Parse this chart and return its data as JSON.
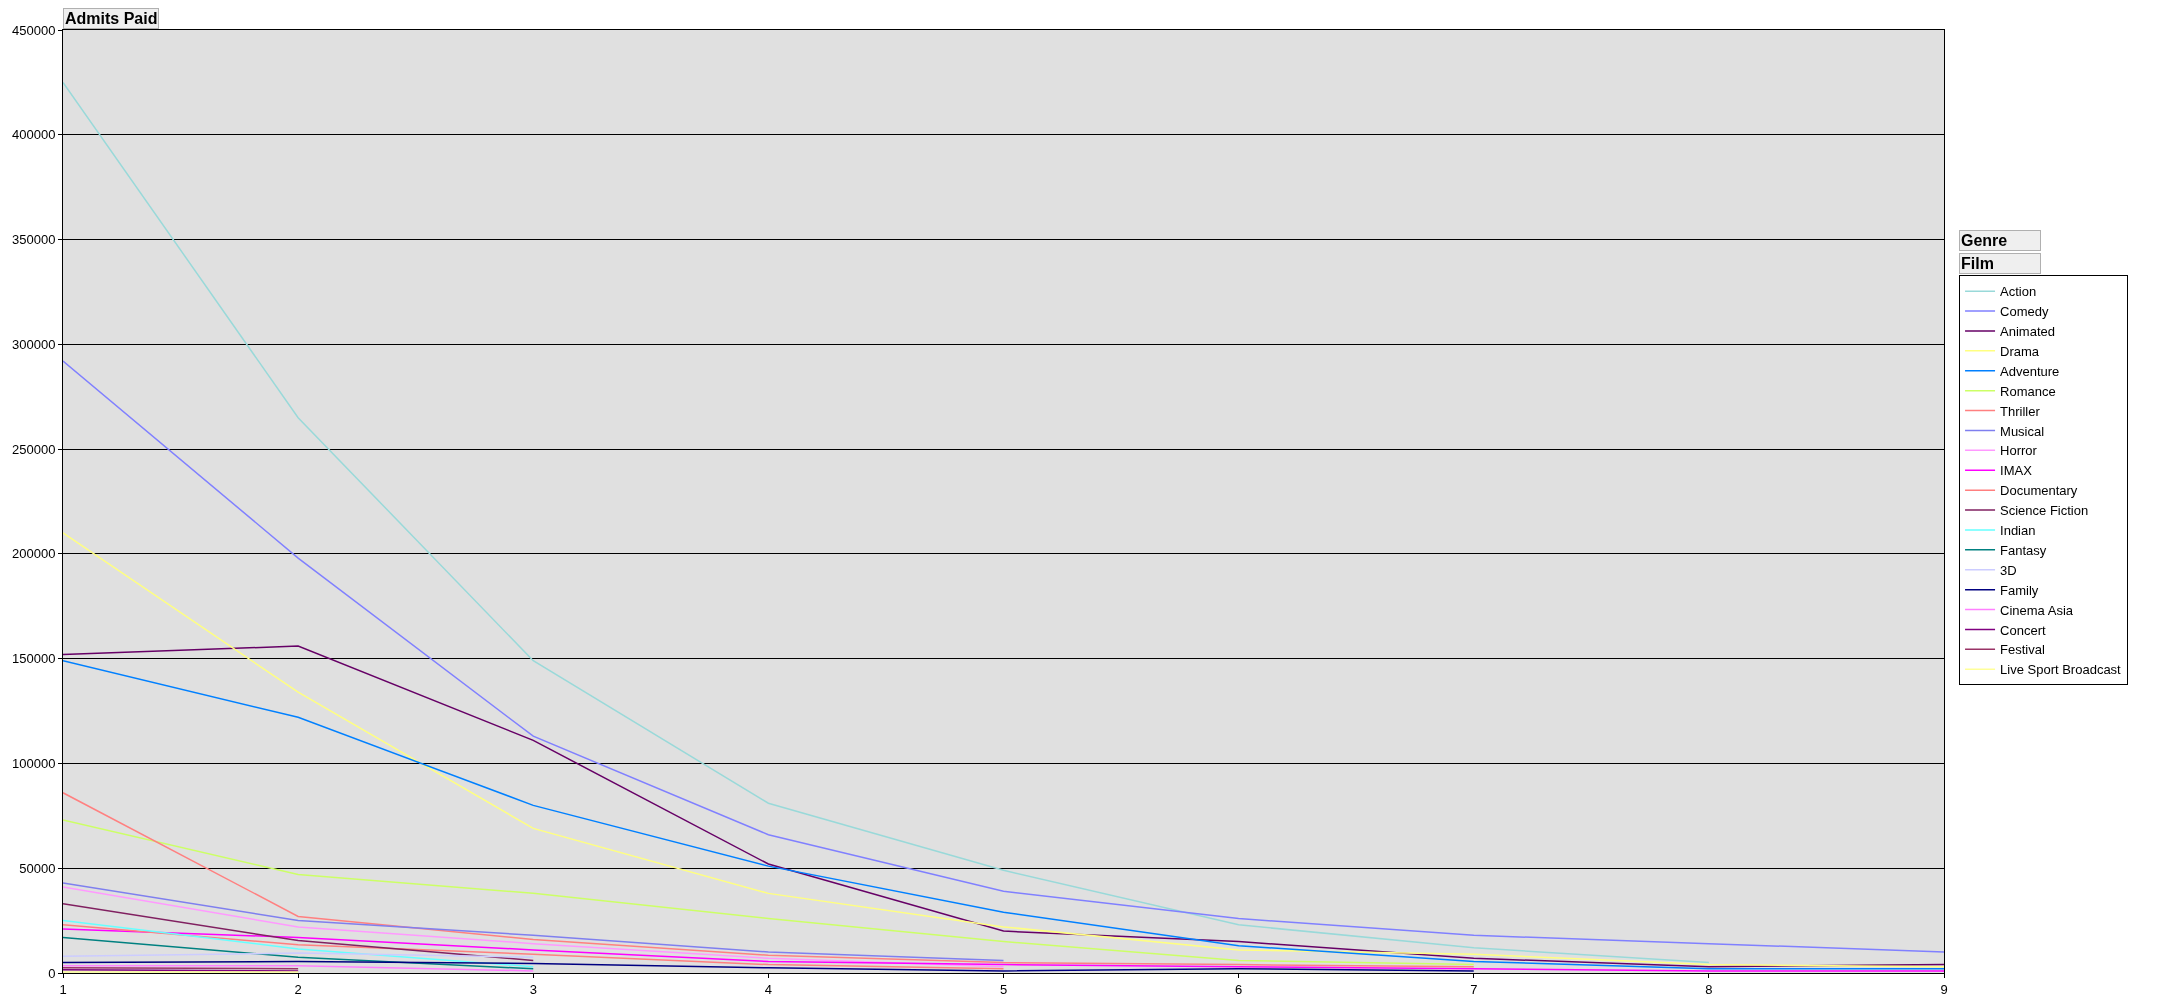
{
  "chart_data": {
    "type": "line",
    "ylabel": "Admits Paid",
    "legend_title": "Genre",
    "annotations": [
      "Film"
    ],
    "x": [
      1,
      2,
      3,
      4,
      5,
      6,
      7,
      8,
      9
    ],
    "xlim": [
      1,
      9
    ],
    "xticks": [
      1,
      2,
      3,
      4,
      5,
      6,
      7,
      8,
      9
    ],
    "ylim": [
      0,
      450000
    ],
    "yticks": [
      0,
      50000,
      100000,
      150000,
      200000,
      250000,
      300000,
      350000,
      400000,
      450000
    ],
    "grid": "y",
    "legend": "right",
    "marker": "none",
    "line_style": "solid",
    "series": [
      {
        "name": "Action",
        "color": "#99d9d9",
        "values": [
          425000,
          265000,
          149000,
          81000,
          49000,
          23000,
          12000,
          5000,
          null
        ]
      },
      {
        "name": "Comedy",
        "color": "#8080ff",
        "values": [
          292000,
          198000,
          113000,
          66000,
          39000,
          26000,
          18000,
          14000,
          10000
        ]
      },
      {
        "name": "Animated",
        "color": "#660066",
        "values": [
          152000,
          156000,
          111000,
          52000,
          20000,
          15000,
          7000,
          3000,
          4000
        ]
      },
      {
        "name": "Drama",
        "color": "#ffff80",
        "values": [
          210000,
          134000,
          69000,
          38000,
          22000,
          11000,
          9000,
          4000,
          3000
        ]
      },
      {
        "name": "Adventure",
        "color": "#0080ff",
        "values": [
          149000,
          122000,
          80000,
          51000,
          29000,
          13000,
          5500,
          2000,
          2000
        ]
      },
      {
        "name": "Romance",
        "color": "#ccff66",
        "values": [
          73000,
          47000,
          38000,
          26000,
          15000,
          6000,
          4000,
          null,
          null
        ]
      },
      {
        "name": "Thriller",
        "color": "#ff8080",
        "values": [
          86000,
          27000,
          16000,
          8500,
          5000,
          4000,
          3000,
          null,
          null
        ]
      },
      {
        "name": "Musical",
        "color": "#7f7fef",
        "values": [
          43000,
          25000,
          18000,
          10000,
          6000,
          null,
          null,
          null,
          null
        ]
      },
      {
        "name": "Horror",
        "color": "#ff99ff",
        "values": [
          41000,
          22000,
          14000,
          7000,
          3000,
          null,
          null,
          null,
          null
        ]
      },
      {
        "name": "IMAX",
        "color": "#ff00ff",
        "values": [
          21000,
          17000,
          11000,
          5500,
          4000,
          3000,
          2000,
          1000,
          1000
        ]
      },
      {
        "name": "Documentary",
        "color": "#ff7f7f",
        "values": [
          23000,
          13500,
          9000,
          4000,
          2000,
          null,
          null,
          null,
          null
        ]
      },
      {
        "name": "Science Fiction",
        "color": "#802060",
        "values": [
          33000,
          15500,
          6000,
          null,
          null,
          null,
          null,
          null,
          null
        ]
      },
      {
        "name": "Indian",
        "color": "#66ffff",
        "values": [
          25000,
          11500,
          3000,
          null,
          null,
          null,
          null,
          null,
          null
        ]
      },
      {
        "name": "Fantasy",
        "color": "#008080",
        "values": [
          17000,
          7500,
          2000,
          null,
          null,
          null,
          null,
          null,
          null
        ]
      },
      {
        "name": "3D",
        "color": "#ccccff",
        "values": [
          8000,
          9500,
          7500,
          null,
          null,
          null,
          null,
          null,
          null
        ]
      },
      {
        "name": "Family",
        "color": "#000080",
        "values": [
          5000,
          5500,
          4500,
          2500,
          1000,
          2000,
          1000,
          null,
          null
        ]
      },
      {
        "name": "Cinema Asia",
        "color": "#ff80ff",
        "values": [
          3500,
          3500,
          1000,
          null,
          null,
          null,
          null,
          null,
          null
        ]
      },
      {
        "name": "Concert",
        "color": "#800080",
        "values": [
          1500,
          1000,
          null,
          null,
          null,
          null,
          null,
          null,
          null
        ]
      },
      {
        "name": "Festival",
        "color": "#993366",
        "values": [
          2500,
          2000,
          null,
          null,
          null,
          null,
          null,
          null,
          null
        ]
      },
      {
        "name": "Live Sport Broadcast",
        "color": "#ffff99",
        "values": [
          500,
          500,
          null,
          null,
          null,
          null,
          null,
          null,
          null
        ]
      }
    ]
  }
}
